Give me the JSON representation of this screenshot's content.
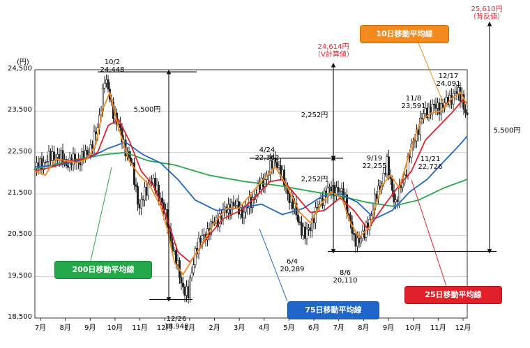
{
  "chart_data": {
    "type": "line",
    "y_unit": "(円)",
    "yticks": [
      "24,500",
      "23,500",
      "22,500",
      "21,500",
      "20,500",
      "19,500",
      "18,500"
    ],
    "ylim": [
      18500,
      24500
    ],
    "xticks": [
      "7月",
      "8月",
      "9月",
      "10月",
      "11月",
      "12月",
      "1月",
      "2月",
      "3月",
      "4月",
      "5月",
      "6月",
      "7月",
      "8月",
      "9月",
      "10月",
      "11月",
      "12月"
    ],
    "series": [
      {
        "name": "10日移動平均線",
        "color": "#f28a1e"
      },
      {
        "name": "25日移動平均線",
        "color": "#e0202a"
      },
      {
        "name": "75日移動平均線",
        "color": "#1f66c8"
      },
      {
        "name": "200日移動平均線",
        "color": "#25a84a"
      }
    ],
    "price_points": [
      [
        0,
        22100
      ],
      [
        12,
        22300
      ],
      [
        24,
        22450
      ],
      [
        36,
        22250
      ],
      [
        48,
        22300
      ],
      [
        60,
        22450
      ],
      [
        72,
        23050
      ],
      [
        80,
        24300
      ],
      [
        88,
        23650
      ],
      [
        100,
        22850
      ],
      [
        112,
        22100
      ],
      [
        120,
        21150
      ],
      [
        132,
        21850
      ],
      [
        144,
        21450
      ],
      [
        156,
        20400
      ],
      [
        168,
        19350
      ],
      [
        176,
        19050
      ],
      [
        184,
        20150
      ],
      [
        196,
        20550
      ],
      [
        212,
        20950
      ],
      [
        226,
        21250
      ],
      [
        240,
        21050
      ],
      [
        252,
        21450
      ],
      [
        266,
        21950
      ],
      [
        276,
        22350
      ],
      [
        288,
        21650
      ],
      [
        300,
        21000
      ],
      [
        310,
        20450
      ],
      [
        320,
        20950
      ],
      [
        332,
        21500
      ],
      [
        344,
        21650
      ],
      [
        356,
        21400
      ],
      [
        366,
        20350
      ],
      [
        378,
        20500
      ],
      [
        392,
        21450
      ],
      [
        404,
        22200
      ],
      [
        414,
        21250
      ],
      [
        424,
        21950
      ],
      [
        436,
        22900
      ],
      [
        448,
        23500
      ],
      [
        460,
        23600
      ],
      [
        470,
        23650
      ],
      [
        482,
        23950
      ],
      [
        490,
        23850
      ],
      [
        496,
        23300
      ]
    ],
    "ma10_points": [
      [
        0,
        22050
      ],
      [
        12,
        21950
      ],
      [
        24,
        22350
      ],
      [
        36,
        22300
      ],
      [
        48,
        22250
      ],
      [
        60,
        22350
      ],
      [
        70,
        22700
      ],
      [
        78,
        23550
      ],
      [
        86,
        23950
      ],
      [
        96,
        23100
      ],
      [
        108,
        22300
      ],
      [
        120,
        21950
      ],
      [
        132,
        21700
      ],
      [
        144,
        21200
      ],
      [
        152,
        20650
      ],
      [
        160,
        19850
      ],
      [
        170,
        19550
      ],
      [
        180,
        19900
      ],
      [
        192,
        20300
      ],
      [
        206,
        20800
      ],
      [
        220,
        21150
      ],
      [
        234,
        21150
      ],
      [
        248,
        21500
      ],
      [
        262,
        21850
      ],
      [
        276,
        22150
      ],
      [
        290,
        21650
      ],
      [
        304,
        21050
      ],
      [
        316,
        20800
      ],
      [
        328,
        21250
      ],
      [
        340,
        21550
      ],
      [
        352,
        21400
      ],
      [
        362,
        20800
      ],
      [
        372,
        20450
      ],
      [
        384,
        20700
      ],
      [
        398,
        21700
      ],
      [
        408,
        21950
      ],
      [
        418,
        21650
      ],
      [
        430,
        22500
      ],
      [
        442,
        23250
      ],
      [
        454,
        23450
      ],
      [
        466,
        23500
      ],
      [
        478,
        23800
      ],
      [
        488,
        23950
      ],
      [
        496,
        23650
      ]
    ],
    "ma25_points": [
      [
        0,
        22050
      ],
      [
        20,
        22150
      ],
      [
        40,
        22300
      ],
      [
        58,
        22350
      ],
      [
        72,
        22500
      ],
      [
        84,
        23150
      ],
      [
        96,
        23300
      ],
      [
        108,
        22800
      ],
      [
        122,
        22050
      ],
      [
        136,
        21700
      ],
      [
        150,
        21000
      ],
      [
        164,
        20100
      ],
      [
        178,
        19850
      ],
      [
        196,
        20400
      ],
      [
        216,
        20900
      ],
      [
        236,
        21100
      ],
      [
        252,
        21400
      ],
      [
        270,
        21800
      ],
      [
        284,
        21850
      ],
      [
        300,
        21450
      ],
      [
        316,
        21050
      ],
      [
        332,
        21100
      ],
      [
        350,
        21400
      ],
      [
        366,
        21100
      ],
      [
        382,
        20650
      ],
      [
        400,
        21200
      ],
      [
        416,
        21650
      ],
      [
        432,
        22050
      ],
      [
        448,
        22800
      ],
      [
        464,
        23150
      ],
      [
        478,
        23450
      ],
      [
        490,
        23750
      ],
      [
        496,
        23700
      ]
    ],
    "ma75_points": [
      [
        0,
        22150
      ],
      [
        30,
        22200
      ],
      [
        60,
        22350
      ],
      [
        84,
        22600
      ],
      [
        104,
        22750
      ],
      [
        124,
        22450
      ],
      [
        144,
        22250
      ],
      [
        164,
        21850
      ],
      [
        184,
        21350
      ],
      [
        208,
        21100
      ],
      [
        232,
        21150
      ],
      [
        260,
        21250
      ],
      [
        284,
        21000
      ],
      [
        308,
        21150
      ],
      [
        330,
        21450
      ],
      [
        350,
        21500
      ],
      [
        370,
        21300
      ],
      [
        390,
        20900
      ],
      [
        410,
        21100
      ],
      [
        430,
        21550
      ],
      [
        450,
        21850
      ],
      [
        470,
        22300
      ],
      [
        488,
        22700
      ],
      [
        496,
        22900
      ]
    ],
    "ma200_points": [
      [
        0,
        22100
      ],
      [
        40,
        22300
      ],
      [
        80,
        22450
      ],
      [
        104,
        22500
      ],
      [
        130,
        22300
      ],
      [
        160,
        22200
      ],
      [
        200,
        21950
      ],
      [
        240,
        21800
      ],
      [
        280,
        21700
      ],
      [
        320,
        21550
      ],
      [
        350,
        21450
      ],
      [
        380,
        21300
      ],
      [
        410,
        21200
      ],
      [
        440,
        21350
      ],
      [
        470,
        21650
      ],
      [
        496,
        21850
      ]
    ],
    "annotations": {
      "oct_high": {
        "date": "10/2",
        "value": "24,448"
      },
      "dec_low": {
        "date": "12/26",
        "value": "18,948"
      },
      "apr_high": {
        "date": "4/24",
        "value": "22,362"
      },
      "jun_low": {
        "date": "6/4",
        "value": "20,289"
      },
      "aug_low": {
        "date": "8/6",
        "value": "20,110"
      },
      "sep_high": {
        "date": "9/19",
        "value": "22,255"
      },
      "nov_high": {
        "date": "11/8",
        "value": "23,591"
      },
      "nov_low": {
        "date": "11/21",
        "value": "22,726"
      },
      "dec_high": {
        "date": "12/17",
        "value": "24,091"
      },
      "drop_width": "5,500円",
      "range_lower": "2,252円",
      "range_upper": "2,252円",
      "target_v": {
        "value": "24,614円",
        "note": "（V計算値）"
      },
      "target_reversal": {
        "value": "25,610円",
        "note": "（背反値）"
      },
      "rise_width": "5,500円"
    }
  }
}
